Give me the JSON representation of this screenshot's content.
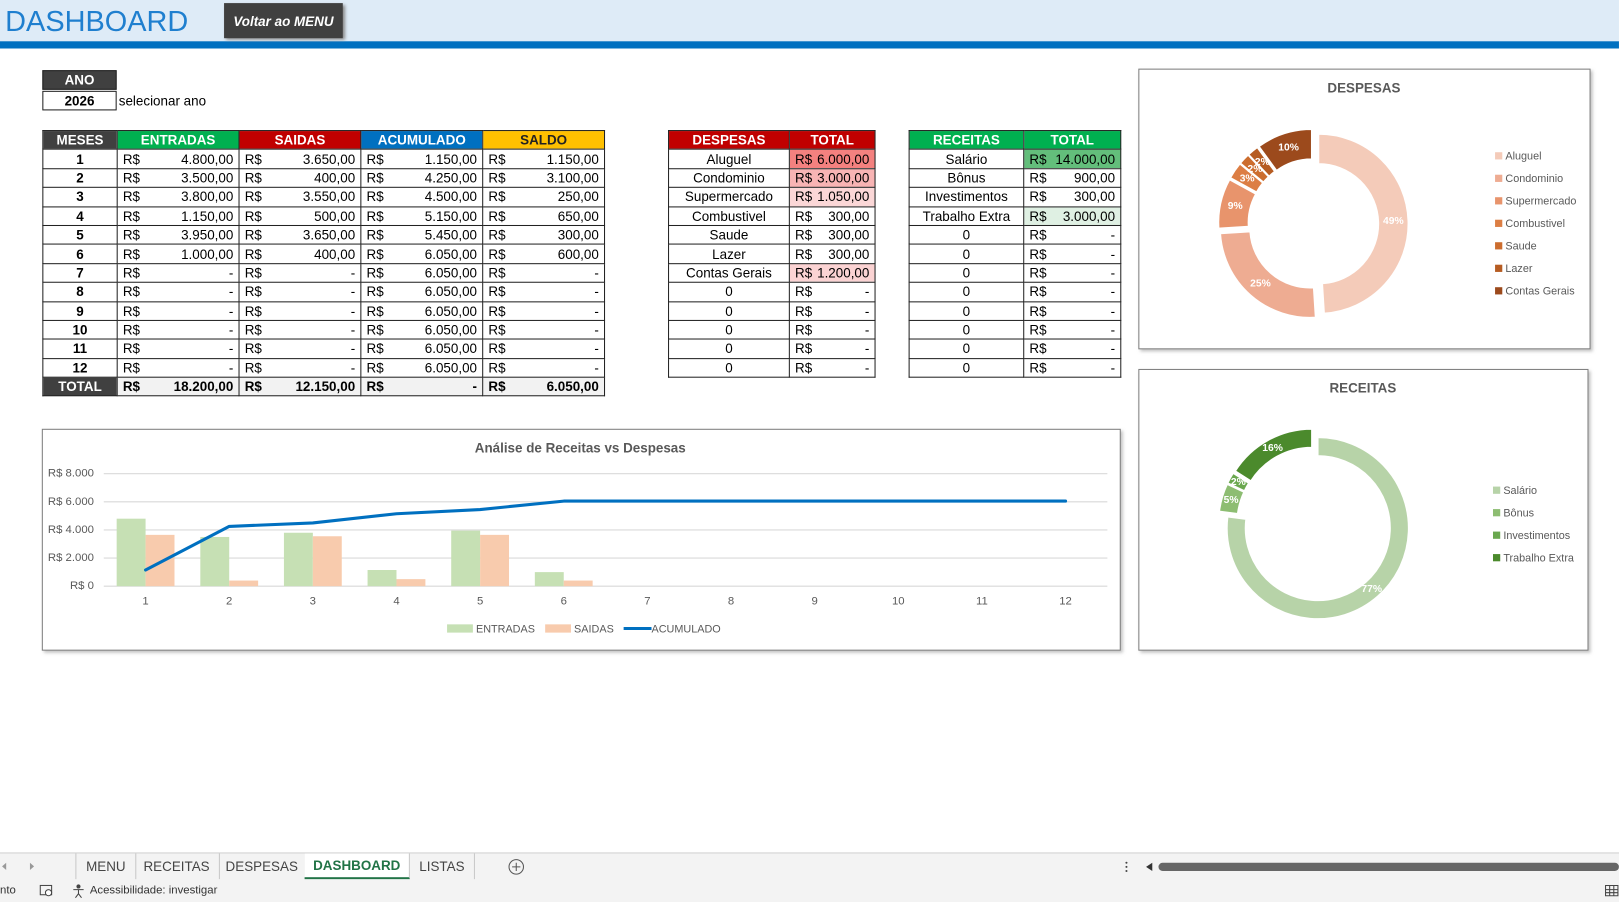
{
  "header": {
    "title": "DASHBOARD",
    "button": "Voltar ao MENU"
  },
  "year_selector": {
    "label": "ANO",
    "value": "2026",
    "hint": "selecionar ano"
  },
  "currency": "R$",
  "summary_table": {
    "columns": [
      "MESES",
      "ENTRADAS",
      "SAIDAS",
      "ACUMULADO",
      "SALDO"
    ],
    "rows": [
      [
        "1",
        "4.800,00",
        "3.650,00",
        "1.150,00",
        "1.150,00"
      ],
      [
        "2",
        "3.500,00",
        "400,00",
        "4.250,00",
        "3.100,00"
      ],
      [
        "3",
        "3.800,00",
        "3.550,00",
        "4.500,00",
        "250,00"
      ],
      [
        "4",
        "1.150,00",
        "500,00",
        "5.150,00",
        "650,00"
      ],
      [
        "5",
        "3.950,00",
        "3.650,00",
        "5.450,00",
        "300,00"
      ],
      [
        "6",
        "1.000,00",
        "400,00",
        "6.050,00",
        "600,00"
      ],
      [
        "7",
        "-",
        "-",
        "6.050,00",
        "-"
      ],
      [
        "8",
        "-",
        "-",
        "6.050,00",
        "-"
      ],
      [
        "9",
        "-",
        "-",
        "6.050,00",
        "-"
      ],
      [
        "10",
        "-",
        "-",
        "6.050,00",
        "-"
      ],
      [
        "11",
        "-",
        "-",
        "6.050,00",
        "-"
      ],
      [
        "12",
        "-",
        "-",
        "6.050,00",
        "-"
      ]
    ],
    "total": [
      "TOTAL",
      "18.200,00",
      "12.150,00",
      "-",
      "6.050,00"
    ]
  },
  "expenses_table": {
    "columns": [
      "DESPESAS",
      "TOTAL"
    ],
    "rows": [
      [
        "Aluguel",
        "6.000,00"
      ],
      [
        "Condominio",
        "3.000,00"
      ],
      [
        "Supermercado",
        "1.050,00"
      ],
      [
        "Combustivel",
        "300,00"
      ],
      [
        "Saude",
        "300,00"
      ],
      [
        "Lazer",
        "300,00"
      ],
      [
        "Contas Gerais",
        "1.200,00"
      ],
      [
        "0",
        "-"
      ],
      [
        "0",
        "-"
      ],
      [
        "0",
        "-"
      ],
      [
        "0",
        "-"
      ],
      [
        "0",
        "-"
      ]
    ]
  },
  "income_table": {
    "columns": [
      "RECEITAS",
      "TOTAL"
    ],
    "rows": [
      [
        "Salário",
        "14.000,00"
      ],
      [
        "Bônus",
        "900,00"
      ],
      [
        "Investimentos",
        "300,00"
      ],
      [
        "Trabalho Extra",
        "3.000,00"
      ],
      [
        "0",
        "-"
      ],
      [
        "0",
        "-"
      ],
      [
        "0",
        "-"
      ],
      [
        "0",
        "-"
      ],
      [
        "0",
        "-"
      ],
      [
        "0",
        "-"
      ],
      [
        "0",
        "-"
      ],
      [
        "0",
        "-"
      ]
    ]
  },
  "chart_data": [
    {
      "type": "bar",
      "title": "Análise de Receitas vs Despesas",
      "categories": [
        "1",
        "2",
        "3",
        "4",
        "5",
        "6",
        "7",
        "8",
        "9",
        "10",
        "11",
        "12"
      ],
      "series": [
        {
          "name": "ENTRADAS",
          "color": "#c6e0b4",
          "values": [
            4800,
            3500,
            3800,
            1150,
            3950,
            1000,
            0,
            0,
            0,
            0,
            0,
            0
          ]
        },
        {
          "name": "SAIDAS",
          "color": "#f8cbad",
          "values": [
            3650,
            400,
            3550,
            500,
            3650,
            400,
            0,
            0,
            0,
            0,
            0,
            0
          ]
        },
        {
          "name": "ACUMULADO",
          "color": "#0070c0",
          "type": "line",
          "values": [
            1150,
            4250,
            4500,
            5150,
            5450,
            6050,
            6050,
            6050,
            6050,
            6050,
            6050,
            6050
          ]
        }
      ],
      "ylim": [
        0,
        8000
      ],
      "yticks": [
        {
          "value": 0,
          "label": "R$ 0"
        },
        {
          "value": 2000,
          "label": "R$ 2.000"
        },
        {
          "value": 4000,
          "label": "R$ 4.000"
        },
        {
          "value": 6000,
          "label": "R$ 6.000"
        },
        {
          "value": 8000,
          "label": "R$ 8.000"
        }
      ],
      "grid": true,
      "legend": "bottom"
    },
    {
      "type": "doughnut",
      "title": "DESPESAS",
      "categories": [
        "Aluguel",
        "Condominio",
        "Supermercado",
        "Combustivel",
        "Saude",
        "Lazer",
        "Contas Gerais"
      ],
      "values": [
        49,
        25,
        9,
        3,
        2,
        2,
        10
      ],
      "value_labels": [
        "49%",
        "25%",
        "9%",
        "3%",
        "2%",
        "2%",
        "10%"
      ],
      "colors": [
        "#f4cbb9",
        "#eeac92",
        "#e8946c",
        "#dc7e44",
        "#cc6d2e",
        "#b65c22",
        "#9c4a1c"
      ],
      "legend": "right"
    },
    {
      "type": "doughnut",
      "title": "RECEITAS",
      "categories": [
        "Salário",
        "Bônus",
        "Investimentos",
        "Trabalho Extra"
      ],
      "values": [
        77,
        5,
        2,
        16
      ],
      "value_labels": [
        "77%",
        "5%",
        "2%",
        "16%"
      ],
      "colors": [
        "#b7d3a8",
        "#8dbd72",
        "#6aa84f",
        "#4b8a2c"
      ],
      "legend": "right"
    }
  ],
  "sheet_tabs": {
    "tabs": [
      "MENU",
      "RECEITAS",
      "DESPESAS",
      "DASHBOARD",
      "LISTAS"
    ],
    "active": 3
  },
  "status_bar": {
    "mode": "nto",
    "accessibility": "Acessibilidade: investigar"
  }
}
